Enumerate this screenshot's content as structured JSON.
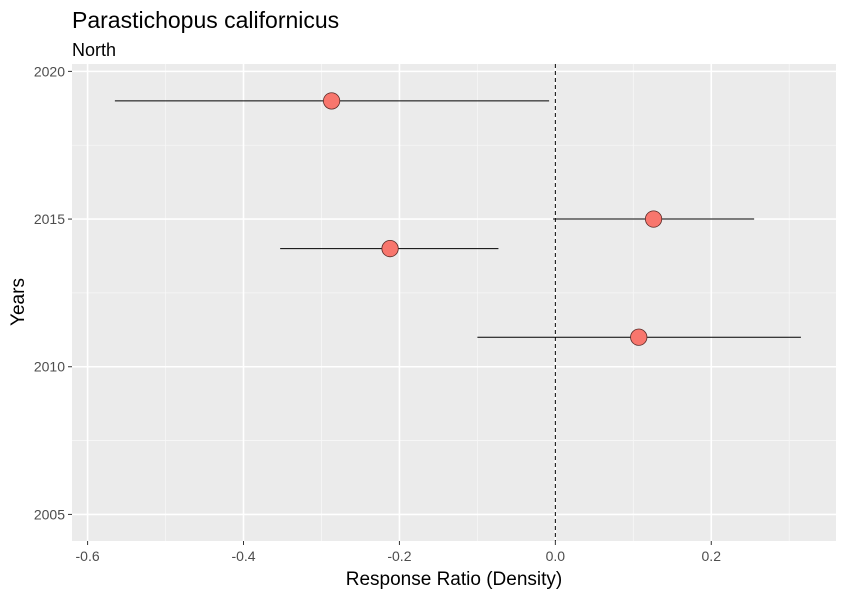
{
  "chart_data": {
    "type": "scatter",
    "title": "Parastichopus californicus",
    "subtitle": "North",
    "xlabel": "Response Ratio (Density)",
    "ylabel": "Years",
    "xlim": [
      -0.62,
      0.36
    ],
    "ylim": [
      2004.1,
      2020.25
    ],
    "x_ticks": [
      -0.6,
      -0.4,
      -0.2,
      0.0,
      0.2
    ],
    "x_tick_labels": [
      "-0.6",
      "-0.4",
      "-0.2",
      "0.0",
      "0.2"
    ],
    "y_ticks": [
      2005,
      2010,
      2015,
      2020
    ],
    "y_tick_labels": [
      "2005",
      "2010",
      "2015",
      "2020"
    ],
    "reference_line_x": 0,
    "grid": true,
    "panel_color": "#ebebeb",
    "point_color": "#f8766d",
    "points": [
      {
        "year": 2019,
        "x": -0.287,
        "lower": -0.565,
        "upper": -0.008
      },
      {
        "year": 2015,
        "x": 0.126,
        "lower": -0.003,
        "upper": 0.255
      },
      {
        "year": 2014,
        "x": -0.212,
        "lower": -0.353,
        "upper": -0.073
      },
      {
        "year": 2011,
        "x": 0.107,
        "lower": -0.1,
        "upper": 0.315
      }
    ]
  }
}
